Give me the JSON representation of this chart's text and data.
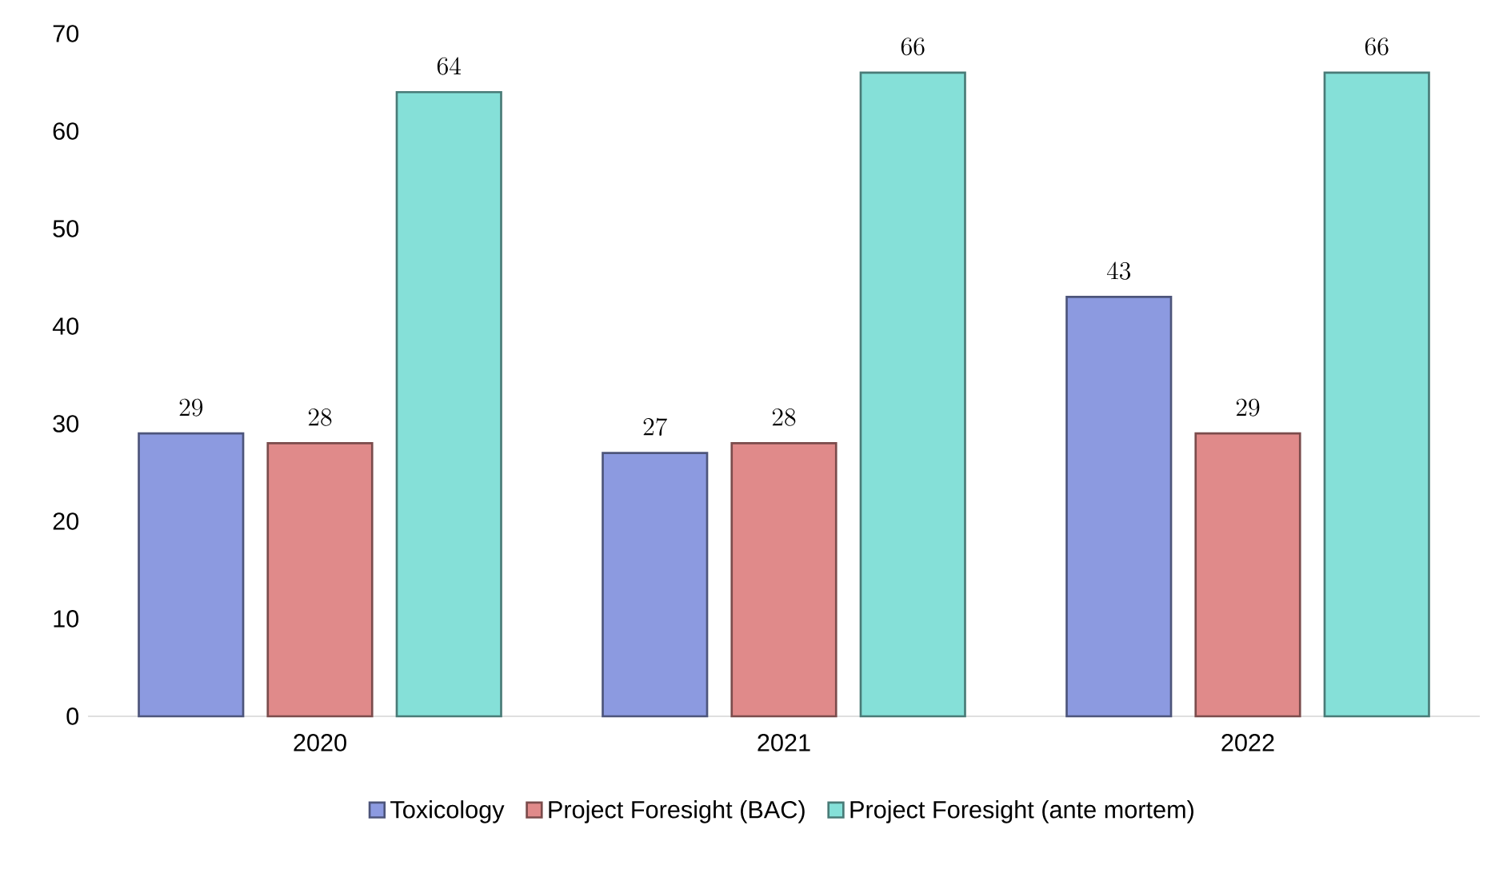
{
  "chart_data": {
    "type": "bar",
    "categories": [
      "2020",
      "2021",
      "2022"
    ],
    "series": [
      {
        "name": "Toxicology",
        "color": "#8c9ae0",
        "values": [
          29,
          27,
          43
        ]
      },
      {
        "name": "Project Foresight (BAC)",
        "color": "#e08a8a",
        "values": [
          28,
          28,
          29
        ]
      },
      {
        "name": "Project Foresight (ante mortem)",
        "color": "#85e0d8",
        "values": [
          64,
          66,
          66
        ]
      }
    ],
    "ylim": [
      0,
      70
    ],
    "yticks": [
      0,
      10,
      20,
      30,
      40,
      50,
      60,
      70
    ],
    "data_labels": true,
    "legend": "bottom"
  }
}
